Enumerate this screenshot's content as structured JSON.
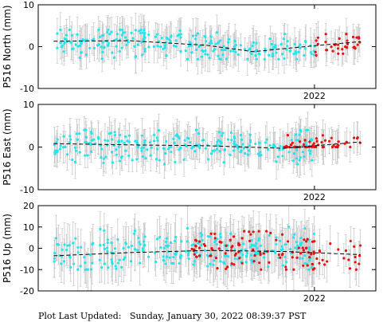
{
  "footer": {
    "prefix": "Plot Last Updated:",
    "timestamp": "Sunday, January 30, 2022 08:39:37 PST"
  },
  "colors": {
    "primary_points": "#22e5f0",
    "recent_points": "#e81010",
    "error_bars": "#c8c8c8",
    "trend_line": "#000000",
    "frame": "#000000"
  },
  "chart_data": [
    {
      "type": "scatter",
      "ylabel": "P516 North (mm)",
      "ylim": [
        -10,
        10
      ],
      "yticks": [
        -10,
        0,
        10
      ],
      "xlim": [
        2020.2,
        2022.4
      ],
      "xtick_labels": [
        {
          "value": 2022.0,
          "label": "2022"
        }
      ],
      "x_range": [
        2020.3,
        2022.3
      ],
      "series": [
        {
          "role": "daily positions",
          "color": "#22e5f0",
          "x_range": [
            2020.3,
            2022.0
          ],
          "approx_y_range": [
            -3,
            4
          ],
          "error_bar_halfwidth": 3.5
        },
        {
          "role": "recent rapid positions",
          "color": "#e81010",
          "x_range": [
            2022.0,
            2022.3
          ],
          "approx_y_range": [
            -4,
            3
          ],
          "error_bar_halfwidth": 3.5
        }
      ],
      "trend": {
        "x": [
          2020.3,
          2020.8,
          2021.3,
          2021.6,
          2022.0,
          2022.3
        ],
        "y": [
          1.3,
          1.4,
          0.3,
          -1.2,
          0.2,
          1.2
        ]
      }
    },
    {
      "type": "scatter",
      "ylabel": "P516 East (mm)",
      "ylim": [
        -10,
        10
      ],
      "yticks": [
        -10,
        0,
        10
      ],
      "xlim": [
        2020.2,
        2022.4
      ],
      "xtick_labels": [
        {
          "value": 2022.0,
          "label": "2022"
        }
      ],
      "x_range": [
        2020.3,
        2022.3
      ],
      "series": [
        {
          "role": "daily positions",
          "color": "#22e5f0",
          "x_range": [
            2020.3,
            2022.0
          ],
          "approx_y_range": [
            -4,
            4
          ],
          "error_bar_halfwidth": 3.5
        },
        {
          "role": "recent rapid positions",
          "color": "#e81010",
          "x_range": [
            2021.8,
            2022.3
          ],
          "approx_y_range": [
            0,
            5
          ],
          "error_bar_halfwidth": 3.5
        }
      ],
      "trend": {
        "x": [
          2020.3,
          2020.8,
          2021.3,
          2021.8,
          2022.3
        ],
        "y": [
          0.8,
          0.5,
          0.3,
          -0.3,
          1.2
        ]
      }
    },
    {
      "type": "scatter",
      "ylabel": "P516 Up (mm)",
      "ylim": [
        -20,
        20
      ],
      "yticks": [
        -20,
        -10,
        0,
        10,
        20
      ],
      "xlim": [
        2020.2,
        2022.4
      ],
      "xtick_labels": [
        {
          "value": 2022.0,
          "label": "2022"
        }
      ],
      "x_range": [
        2020.3,
        2022.3
      ],
      "series": [
        {
          "role": "daily positions",
          "color": "#22e5f0",
          "x_range": [
            2020.3,
            2022.0
          ],
          "approx_y_range": [
            -10,
            10
          ],
          "error_bar_halfwidth": 9
        },
        {
          "role": "recent rapid positions",
          "color": "#e81010",
          "x_range": [
            2021.2,
            2022.3
          ],
          "approx_y_range": [
            -10,
            8
          ],
          "error_bar_halfwidth": 9
        }
      ],
      "trend": {
        "x": [
          2020.3,
          2020.8,
          2021.3,
          2021.8,
          2022.3
        ],
        "y": [
          -3.5,
          -2.0,
          -1.0,
          -1.5,
          -3.0
        ]
      }
    }
  ]
}
